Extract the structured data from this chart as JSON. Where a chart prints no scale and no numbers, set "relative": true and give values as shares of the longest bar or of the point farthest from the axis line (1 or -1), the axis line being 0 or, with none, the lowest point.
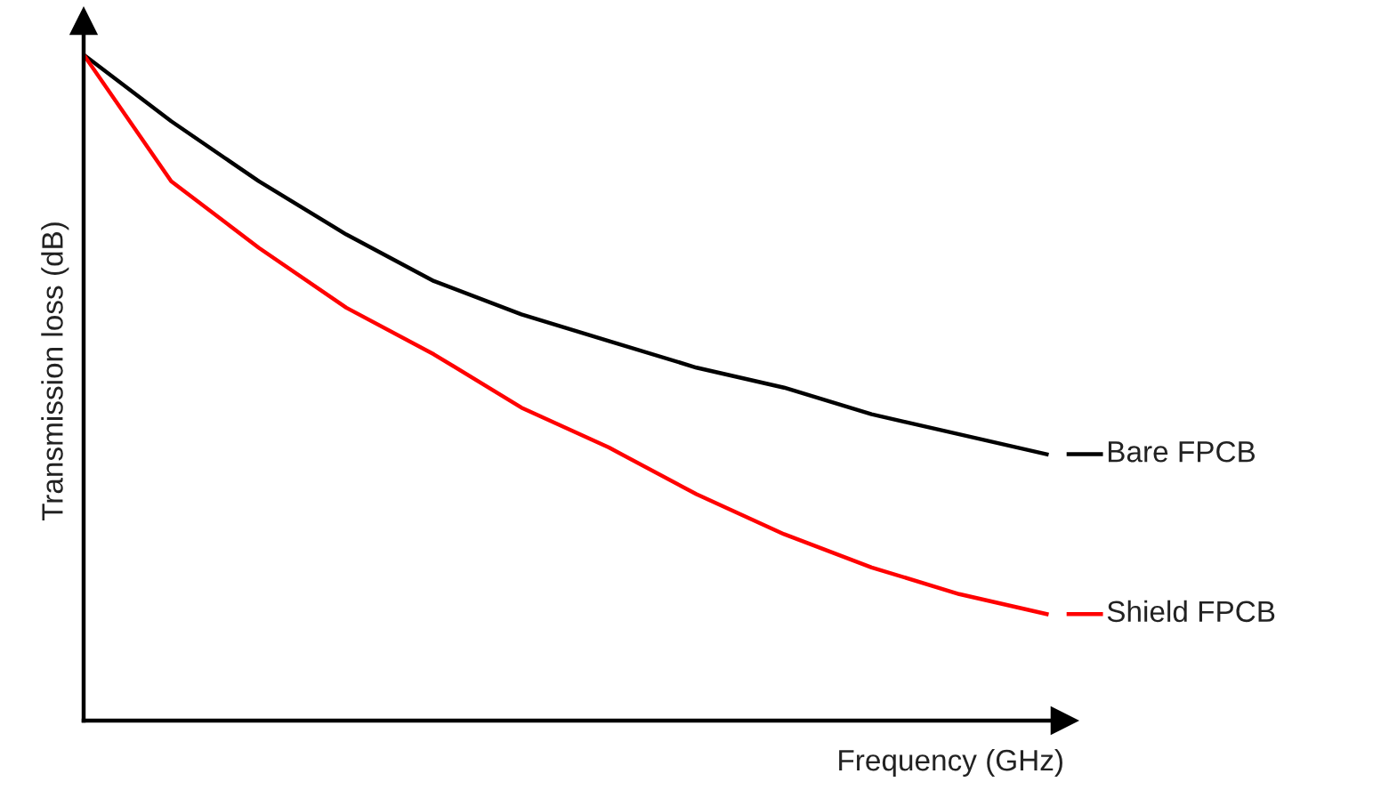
{
  "chart_data": {
    "type": "line",
    "relative": true,
    "xlabel": "Frequency (GHz)",
    "ylabel": "Transmission loss (dB)",
    "categories": [
      null,
      null,
      null,
      null,
      null,
      null,
      null,
      null,
      null,
      null,
      null,
      null
    ],
    "series": [
      {
        "name": "Bare FPCB",
        "color": "#000000",
        "values": [
          1,
          0.9,
          0.81,
          0.73,
          0.66,
          0.61,
          0.57,
          0.53,
          0.5,
          0.46,
          0.43,
          0.4
        ]
      },
      {
        "name": "Shield FPCB",
        "color": "#ff0000",
        "values": [
          1,
          0.81,
          0.71,
          0.62,
          0.55,
          0.47,
          0.41,
          0.34,
          0.28,
          0.23,
          0.19,
          0.16
        ]
      }
    ],
    "grid": false,
    "legend": "right",
    "marker": "none",
    "line_style": "solid"
  }
}
